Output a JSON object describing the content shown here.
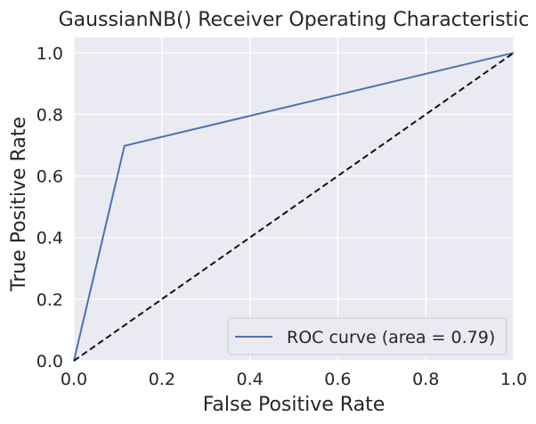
{
  "chart_data": {
    "type": "line",
    "title": "GaussianNB() Receiver Operating Characteristic",
    "xlabel": "False Positive Rate",
    "ylabel": "True Positive Rate",
    "xlim": [
      0.0,
      1.0
    ],
    "ylim": [
      0.0,
      1.05
    ],
    "grid": true,
    "x_ticks": [
      "0.0",
      "0.2",
      "0.4",
      "0.6",
      "0.8",
      "1.0"
    ],
    "y_ticks": [
      "0.0",
      "0.2",
      "0.4",
      "0.6",
      "0.8",
      "1.0"
    ],
    "legend_position": "bottom-right",
    "series": [
      {
        "name": "ROC curve (area = 0.79)",
        "color": "#4c72b0",
        "style": "solid",
        "x": [
          0.0,
          0.115,
          1.0
        ],
        "y": [
          0.0,
          0.698,
          1.0
        ]
      },
      {
        "color": "#111111",
        "style": "dashed",
        "x": [
          0.0,
          1.0
        ],
        "y": [
          0.0,
          1.0
        ]
      }
    ],
    "background": "#eaeaf2",
    "grid_color": "#ffffff"
  }
}
